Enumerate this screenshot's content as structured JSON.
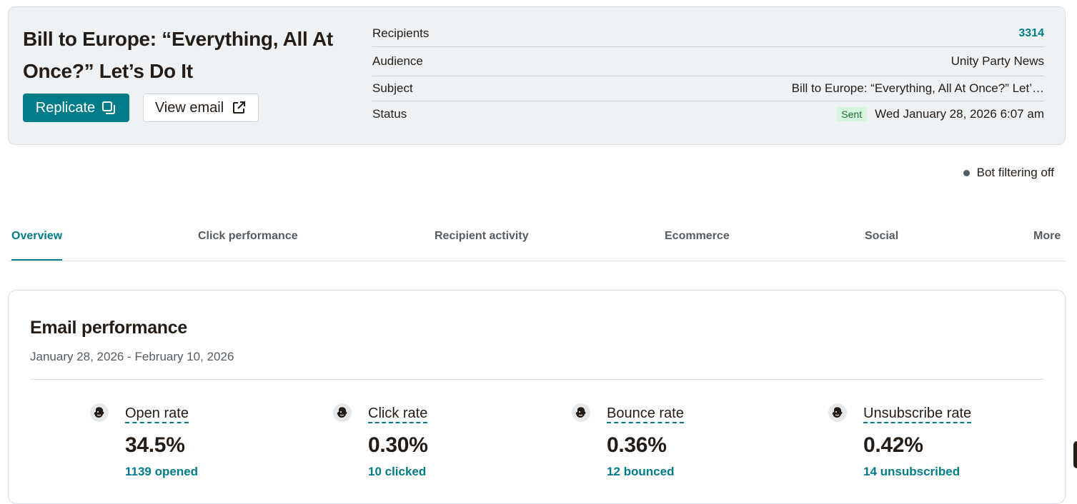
{
  "summary": {
    "title": "Bill to Europe: “Everything, All At Once?” Let’s Do It",
    "replicate_label": "Replicate",
    "view_email_label": "View email",
    "details": {
      "recipients_label": "Recipients",
      "recipients_value": "3314",
      "audience_label": "Audience",
      "audience_value": "Unity Party News",
      "subject_label": "Subject",
      "subject_value": "Bill to Europe: “Everything, All At Once?” Let’…",
      "status_label": "Status",
      "status_badge": "Sent",
      "status_date": "Wed January 28, 2026 6:07 am"
    }
  },
  "bot_filter": {
    "label": "Bot filtering off"
  },
  "tabs": [
    {
      "label": "Overview",
      "active": true
    },
    {
      "label": "Click performance"
    },
    {
      "label": "Recipient activity"
    },
    {
      "label": "Ecommerce"
    },
    {
      "label": "Social"
    },
    {
      "label": "More"
    }
  ],
  "performance": {
    "title": "Email performance",
    "date_range": "January 28, 2026 - February 10, 2026",
    "metrics": [
      {
        "label": "Open rate",
        "value": "34.5%",
        "sub": "1139 opened",
        "icon": "mailchimp-freddie-icon"
      },
      {
        "label": "Click rate",
        "value": "0.30%",
        "sub": "10 clicked",
        "icon": "mailchimp-freddie-icon"
      },
      {
        "label": "Bounce rate",
        "value": "0.36%",
        "sub": "12 bounced",
        "icon": "mailchimp-freddie-icon"
      },
      {
        "label": "Unsubscribe rate",
        "value": "0.42%",
        "sub": "14 unsubscribed",
        "icon": "mailchimp-freddie-icon"
      }
    ]
  },
  "colors": {
    "accent": "#007c89",
    "card_bg": "#eef2f5",
    "sent_badge_bg": "#d5f5dc",
    "text": "#241c15"
  }
}
